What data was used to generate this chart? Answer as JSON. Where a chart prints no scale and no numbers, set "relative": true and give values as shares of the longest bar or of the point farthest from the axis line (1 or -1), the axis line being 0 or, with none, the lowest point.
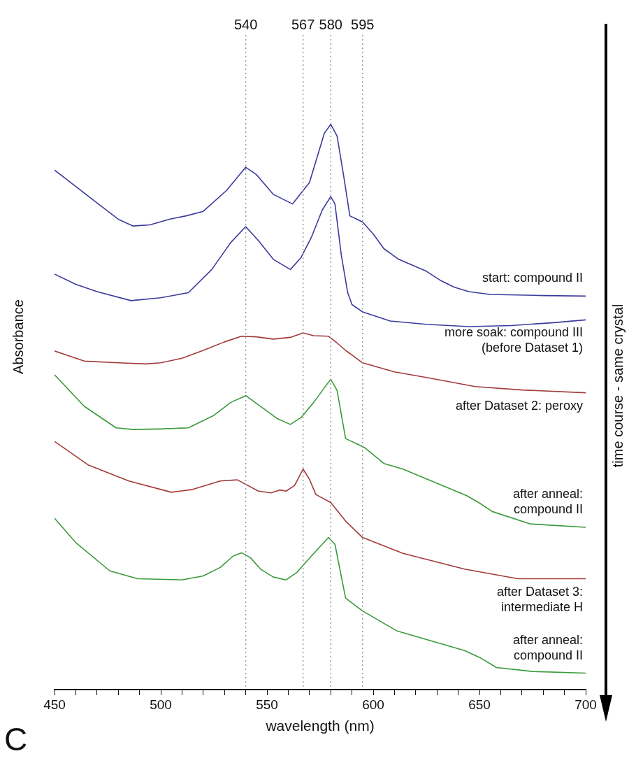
{
  "chart_data": {
    "type": "line",
    "relative": true,
    "xlabel": "wavelength (nm)",
    "ylabel": "Absorbance",
    "xlim": [
      450,
      700
    ],
    "xticks": [
      450,
      {
        "value": 460,
        "label": null
      },
      {
        "value": 470,
        "label": null
      },
      {
        "value": 480,
        "label": null
      },
      {
        "value": 490,
        "label": null
      },
      500,
      {
        "value": 510,
        "label": null
      },
      {
        "value": 520,
        "label": null
      },
      {
        "value": 530,
        "label": null
      },
      {
        "value": 540,
        "label": null
      },
      550,
      {
        "value": 560,
        "label": null
      },
      {
        "value": 570,
        "label": null
      },
      {
        "value": 580,
        "label": null
      },
      {
        "value": 590,
        "label": null
      },
      600,
      {
        "value": 610,
        "label": null
      },
      {
        "value": 620,
        "label": null
      },
      {
        "value": 630,
        "label": null
      },
      {
        "value": 640,
        "label": null
      },
      650,
      {
        "value": 660,
        "label": null
      },
      {
        "value": 670,
        "label": null
      },
      {
        "value": 680,
        "label": null
      },
      {
        "value": 690,
        "label": null
      },
      700
    ],
    "grid": false,
    "marker": "none",
    "line_style": "solid",
    "series": [
      {
        "name": "start: compound II",
        "color": "#3b3b9c",
        "x": [
          450,
          460,
          470,
          480,
          487,
          495,
          504,
          512,
          520,
          531,
          540,
          545,
          553,
          562,
          570,
          577,
          580,
          583,
          586,
          589,
          595,
          600,
          605,
          612,
          625,
          632,
          638,
          645,
          655,
          680,
          700
        ],
        "values": [
          0.919,
          0.89,
          0.861,
          0.832,
          0.82,
          0.822,
          0.832,
          0.838,
          0.846,
          0.883,
          0.924,
          0.911,
          0.876,
          0.859,
          0.897,
          0.984,
          1,
          0.979,
          0.911,
          0.838,
          0.827,
          0.806,
          0.78,
          0.761,
          0.74,
          0.723,
          0.712,
          0.704,
          0.699,
          0.697,
          0.696
        ]
      },
      {
        "name": "more soak: compound III\n(before Dataset 1)",
        "color": "#3b3b9c",
        "x": [
          450,
          460,
          470,
          486,
          500,
          513,
          524,
          533,
          540,
          546,
          553,
          561,
          566,
          571,
          576,
          580,
          582,
          585,
          588,
          590,
          595,
          608,
          625,
          645,
          665,
          685,
          700
        ],
        "values": [
          0.735,
          0.717,
          0.704,
          0.688,
          0.693,
          0.702,
          0.743,
          0.791,
          0.819,
          0.794,
          0.761,
          0.743,
          0.764,
          0.801,
          0.848,
          0.872,
          0.859,
          0.768,
          0.702,
          0.681,
          0.668,
          0.652,
          0.646,
          0.642,
          0.644,
          0.649,
          0.654
        ]
      },
      {
        "name": "after Dataset 2: peroxy",
        "color": "#a23a3a",
        "x": [
          450,
          464,
          480,
          493,
          500,
          510,
          520,
          530,
          538,
          545,
          553,
          561,
          567,
          572,
          579,
          583,
          587,
          595,
          610,
          625,
          648,
          670,
          700
        ],
        "values": [
          0.599,
          0.581,
          0.578,
          0.576,
          0.578,
          0.586,
          0.6,
          0.615,
          0.625,
          0.624,
          0.62,
          0.623,
          0.631,
          0.626,
          0.625,
          0.613,
          0.6,
          0.578,
          0.562,
          0.552,
          0.536,
          0.53,
          0.525
        ]
      },
      {
        "name": "after anneal:\ncompound II",
        "color": "#3a9a3a",
        "x": [
          450,
          464,
          479,
          487,
          500,
          513,
          525,
          533,
          540,
          547,
          555,
          561,
          566,
          572,
          577,
          580,
          583,
          587,
          596,
          605,
          614,
          628,
          644,
          650,
          656,
          674,
          700
        ],
        "values": [
          0.557,
          0.501,
          0.463,
          0.46,
          0.461,
          0.463,
          0.485,
          0.508,
          0.52,
          0.501,
          0.479,
          0.469,
          0.481,
          0.508,
          0.534,
          0.549,
          0.529,
          0.444,
          0.428,
          0.4,
          0.39,
          0.368,
          0.343,
          0.33,
          0.315,
          0.293,
          0.287
        ]
      },
      {
        "name": "after Dataset 3:\nintermediate H",
        "color": "#a23a3a",
        "x": [
          450,
          466,
          485,
          505,
          515,
          528,
          536,
          546,
          552,
          556,
          559,
          563,
          567,
          570,
          573,
          580,
          587,
          595,
          614,
          643,
          668,
          700
        ],
        "values": [
          0.439,
          0.397,
          0.369,
          0.349,
          0.354,
          0.369,
          0.371,
          0.351,
          0.348,
          0.353,
          0.351,
          0.361,
          0.39,
          0.372,
          0.345,
          0.331,
          0.298,
          0.269,
          0.241,
          0.213,
          0.196,
          0.196
        ]
      },
      {
        "name": "after anneal:\ncompound II",
        "color": "#3a9a3a",
        "x": [
          450,
          460,
          476,
          489,
          510,
          520,
          528,
          534,
          538,
          542,
          547,
          553,
          559,
          564,
          568,
          574,
          579,
          582,
          587,
          595,
          611,
          643,
          650,
          658,
          675,
          700
        ],
        "values": [
          0.303,
          0.26,
          0.21,
          0.196,
          0.194,
          0.201,
          0.216,
          0.236,
          0.242,
          0.234,
          0.213,
          0.199,
          0.194,
          0.207,
          0.224,
          0.249,
          0.269,
          0.257,
          0.162,
          0.139,
          0.104,
          0.069,
          0.057,
          0.039,
          0.032,
          0.029
        ]
      }
    ],
    "ref_lines": [
      {
        "axis": "x",
        "value": 540,
        "label": "540",
        "color": "#999999",
        "line_style": "dotted"
      },
      {
        "axis": "x",
        "value": 567,
        "label": "567",
        "color": "#999999",
        "line_style": "dotted"
      },
      {
        "axis": "x",
        "value": 580,
        "label": "580",
        "color": "#999999",
        "line_style": "dotted"
      },
      {
        "axis": "x",
        "value": 595,
        "label": "595",
        "color": "#999999",
        "line_style": "dotted"
      }
    ],
    "annotations": [
      "time course - same crystal",
      "C"
    ]
  }
}
